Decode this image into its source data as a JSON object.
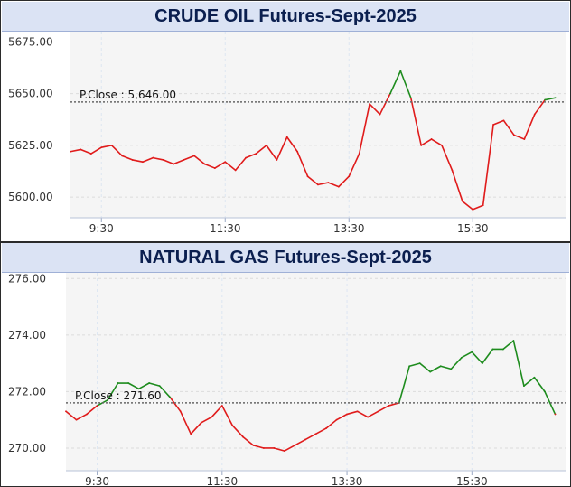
{
  "chart_data": [
    {
      "type": "line",
      "title": "CRUDE OIL Futures-Sept-2025",
      "ylim": [
        5590,
        5680
      ],
      "yticks": [
        5600,
        5625,
        5650,
        5675
      ],
      "ytick_labels": [
        "5600.00",
        "5625.00",
        "5650.00",
        "5675.00"
      ],
      "xticks": [
        "9:30",
        "11:30",
        "13:30",
        "15:30"
      ],
      "reference_line": {
        "label": "P.Close : 5,646.00",
        "value": 5646
      },
      "colors": {
        "above": "#1e8c1e",
        "below": "#e01b1b",
        "reference": "#666666"
      },
      "x": [
        "09:00",
        "09:10",
        "09:20",
        "09:30",
        "09:40",
        "09:50",
        "10:00",
        "10:10",
        "10:20",
        "10:30",
        "10:40",
        "10:50",
        "11:00",
        "11:10",
        "11:20",
        "11:30",
        "11:40",
        "11:50",
        "12:00",
        "12:10",
        "12:20",
        "12:30",
        "12:40",
        "12:50",
        "13:00",
        "13:10",
        "13:20",
        "13:30",
        "13:40",
        "13:50",
        "14:00",
        "14:10",
        "14:20",
        "14:30",
        "14:40",
        "14:50",
        "15:00",
        "15:10",
        "15:20",
        "15:30",
        "15:40",
        "15:50",
        "16:00",
        "16:10",
        "16:20",
        "16:30",
        "16:40",
        "16:50"
      ],
      "values": [
        5622,
        5623,
        5621,
        5624,
        5625,
        5620,
        5618,
        5617,
        5619,
        5618,
        5616,
        5618,
        5620,
        5616,
        5614,
        5617,
        5613,
        5619,
        5621,
        5625,
        5618,
        5629,
        5622,
        5610,
        5606,
        5607,
        5605,
        5610,
        5621,
        5645,
        5640,
        5650,
        5661,
        5648,
        5625,
        5628,
        5625,
        5613,
        5598,
        5594,
        5596,
        5635,
        5637,
        5630,
        5628,
        5640,
        5647,
        5648
      ]
    },
    {
      "type": "line",
      "title": "NATURAL GAS Futures-Sept-2025",
      "ylim": [
        269.2,
        276.2
      ],
      "yticks": [
        270,
        272,
        274,
        276
      ],
      "ytick_labels": [
        "270.00",
        "272.00",
        "274.00",
        "276.00"
      ],
      "xticks": [
        "9:30",
        "11:30",
        "13:30",
        "15:30"
      ],
      "reference_line": {
        "label": "P.Close : 271.60",
        "value": 271.6
      },
      "colors": {
        "above": "#1e8c1e",
        "below": "#e01b1b",
        "reference": "#666666"
      },
      "x": [
        "09:00",
        "09:10",
        "09:20",
        "09:30",
        "09:40",
        "09:50",
        "10:00",
        "10:10",
        "10:20",
        "10:30",
        "10:40",
        "10:50",
        "11:00",
        "11:10",
        "11:20",
        "11:30",
        "11:40",
        "11:50",
        "12:00",
        "12:10",
        "12:20",
        "12:30",
        "12:40",
        "12:50",
        "13:00",
        "13:10",
        "13:20",
        "13:30",
        "13:40",
        "13:50",
        "14:00",
        "14:10",
        "14:20",
        "14:30",
        "14:40",
        "14:50",
        "15:00",
        "15:10",
        "15:20",
        "15:30",
        "15:40",
        "15:50",
        "16:00",
        "16:10",
        "16:20",
        "16:30",
        "16:40",
        "16:50"
      ],
      "values": [
        271.3,
        271.0,
        271.2,
        271.5,
        271.7,
        272.3,
        272.3,
        272.1,
        272.3,
        272.2,
        271.8,
        271.3,
        270.5,
        270.9,
        271.1,
        271.5,
        270.8,
        270.4,
        270.1,
        270.0,
        270.0,
        269.9,
        270.1,
        270.3,
        270.5,
        270.7,
        271.0,
        271.2,
        271.3,
        271.1,
        271.3,
        271.5,
        271.6,
        272.9,
        273.0,
        272.7,
        272.9,
        272.8,
        273.2,
        273.4,
        273.0,
        273.5,
        273.5,
        273.8,
        272.2,
        272.5,
        272.0,
        271.2
      ]
    }
  ]
}
